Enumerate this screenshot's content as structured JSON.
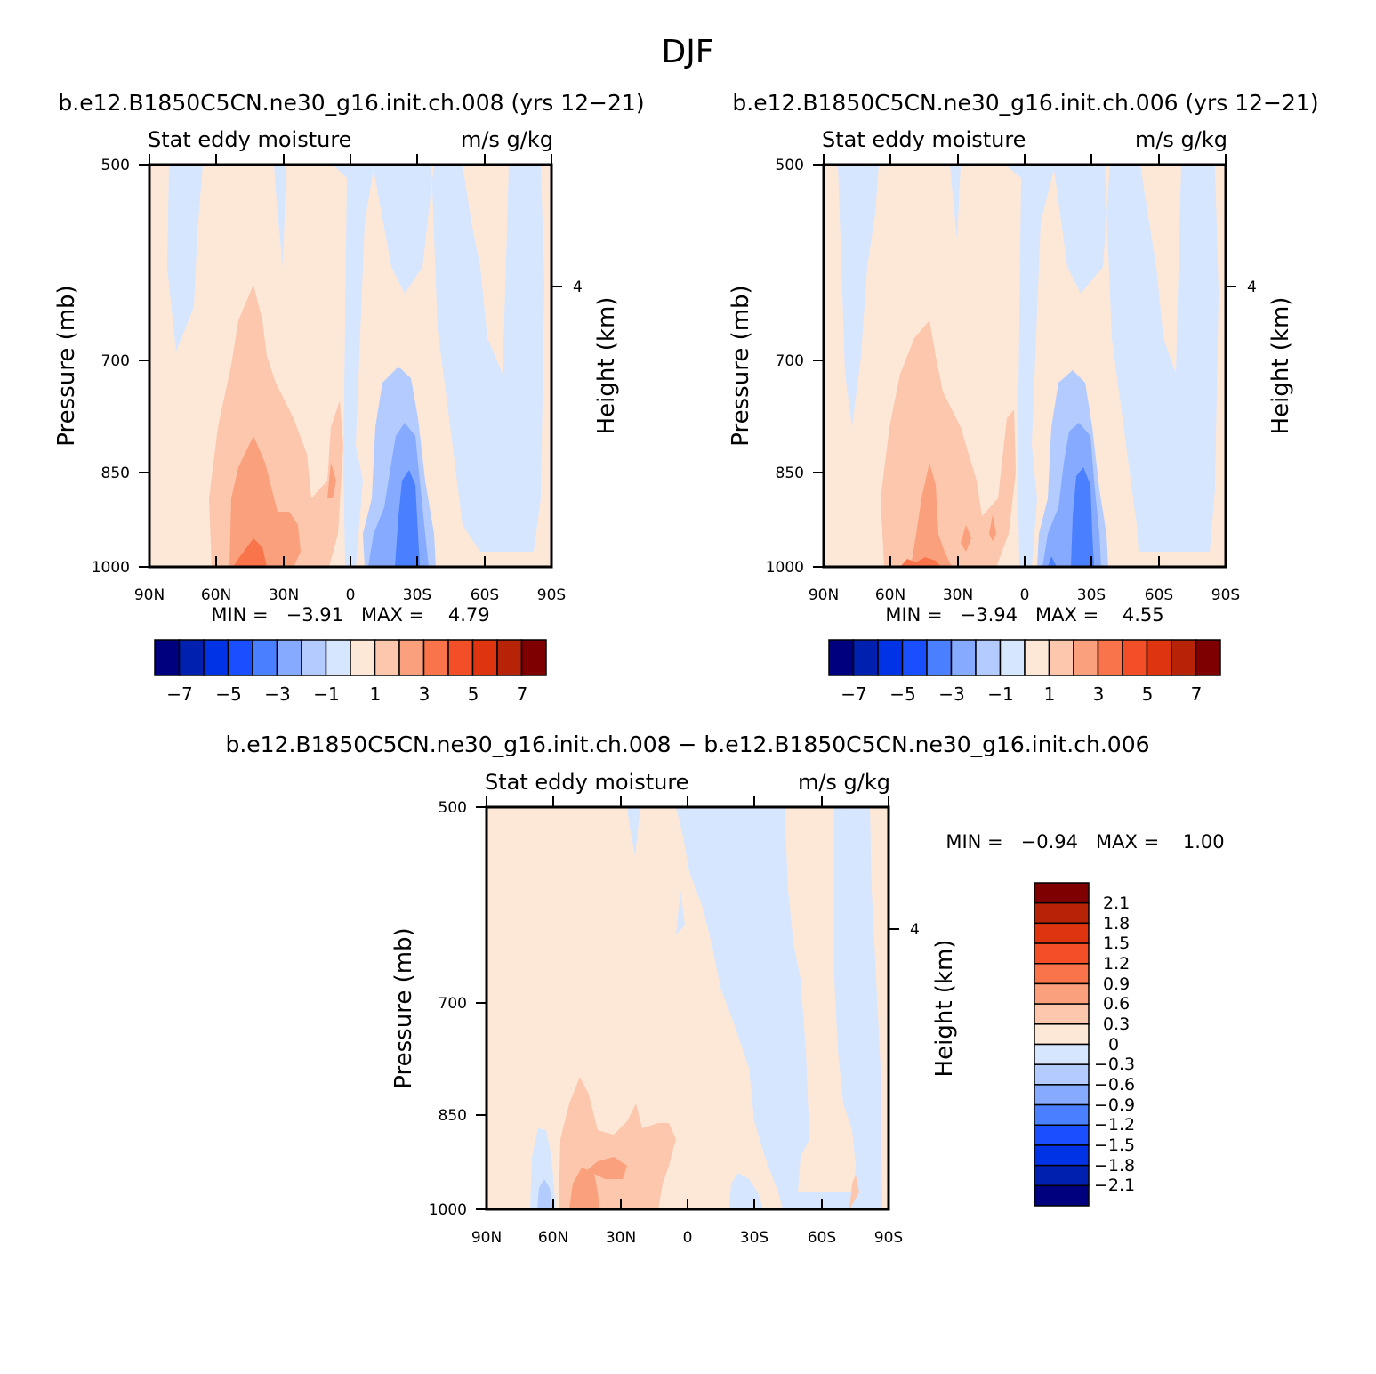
{
  "figure": {
    "title": "DJF",
    "diff_title": "b.e12.B1850C5CN.ne30_g16.init.ch.008 − b.e12.B1850C5CN.ne30_g16.init.ch.006"
  },
  "panels": [
    {
      "id": "top-left",
      "title": "b.e12.B1850C5CN.ne30_g16.init.ch.008 (yrs 12−21)",
      "left_string": "Stat eddy moisture",
      "right_string": "m/s g/kg",
      "ylabel": "Pressure (mb)",
      "y2label": "Height (km)",
      "min_max": "MIN =   −3.91   MAX =    4.79"
    },
    {
      "id": "top-right",
      "title": "b.e12.B1850C5CN.ne30_g16.init.ch.006 (yrs 12−21)",
      "left_string": "Stat eddy moisture",
      "right_string": "m/s g/kg",
      "ylabel": "Pressure (mb)",
      "y2label": "Height (km)",
      "min_max": "MIN =   −3.94   MAX =    4.55"
    },
    {
      "id": "bottom-diff",
      "title": "",
      "left_string": "Stat eddy moisture",
      "right_string": "m/s g/kg",
      "ylabel": "Pressure (mb)",
      "y2label": "Height (km)",
      "min_max": "MIN =   −0.94   MAX =    1.00"
    }
  ],
  "chart_data": [
    {
      "type": "heatmap",
      "title": "b.e12.B1850C5CN.ne30_g16.init.ch.008 (yrs 12−21)",
      "xlabel": "",
      "ylabel": "Pressure (mb)",
      "y2label": "Height (km)",
      "x_ticks": [
        "90N",
        "60N",
        "30N",
        "0",
        "30S",
        "60S",
        "90S"
      ],
      "y_ticks": [
        "500",
        "700",
        "850",
        "1000"
      ],
      "y2_ticks": [
        "4"
      ],
      "xlim": [
        90,
        -90
      ],
      "ylim": [
        1000,
        500
      ],
      "min": -3.91,
      "max": 4.79,
      "note_fields": "approximate regions: positive near 60N-0 low levels peaking ~35N near 1000 mb; negative minimum near 25S 850-1000 mb"
    },
    {
      "type": "heatmap",
      "title": "b.e12.B1850C5CN.ne30_g16.init.ch.006 (yrs 12−21)",
      "ylabel": "Pressure (mb)",
      "y2label": "Height (km)",
      "x_ticks": [
        "90N",
        "60N",
        "30N",
        "0",
        "30S",
        "60S",
        "90S"
      ],
      "y_ticks": [
        "500",
        "700",
        "850",
        "1000"
      ],
      "y2_ticks": [
        "4"
      ],
      "xlim": [
        90,
        -90
      ],
      "ylim": [
        1000,
        500
      ],
      "min": -3.94,
      "max": 4.55
    },
    {
      "type": "heatmap",
      "title": "b.e12.B1850C5CN.ne30_g16.init.ch.008 − b.e12.B1850C5CN.ne30_g16.init.ch.006",
      "ylabel": "Pressure (mb)",
      "y2label": "Height (km)",
      "x_ticks": [
        "90N",
        "60N",
        "30N",
        "0",
        "30S",
        "60S",
        "90S"
      ],
      "y_ticks": [
        "500",
        "700",
        "850",
        "1000"
      ],
      "y2_ticks": [
        "4"
      ],
      "xlim": [
        90,
        -90
      ],
      "ylim": [
        1000,
        500
      ],
      "min": -0.94,
      "max": 1.0
    }
  ],
  "colorbars": {
    "abs_labels": [
      "−7",
      "−5",
      "−3",
      "−1",
      "1",
      "3",
      "5",
      "7"
    ],
    "abs_colors": [
      "#00007f",
      "#0020b0",
      "#0033e6",
      "#1a4fff",
      "#4a80ff",
      "#86aaff",
      "#b3cbff",
      "#d6e6ff",
      "#fde8d8",
      "#fcc7ad",
      "#fba07c",
      "#f9744a",
      "#f24f28",
      "#de3410",
      "#b62306",
      "#7f0000"
    ],
    "diff_labels": [
      "2.1",
      "1.8",
      "1.5",
      "1.2",
      "0.9",
      "0.6",
      "0.3",
      "0",
      "−0.3",
      "−0.6",
      "−0.9",
      "−1.2",
      "−1.5",
      "−1.8",
      "−2.1"
    ],
    "diff_colors": [
      "#7f0000",
      "#b62306",
      "#de3410",
      "#f24f28",
      "#f9744a",
      "#fba07c",
      "#fcc7ad",
      "#fde8d8",
      "#d6e6ff",
      "#b3cbff",
      "#86aaff",
      "#4a80ff",
      "#1a4fff",
      "#0033e6",
      "#0020b0",
      "#00007f"
    ]
  }
}
